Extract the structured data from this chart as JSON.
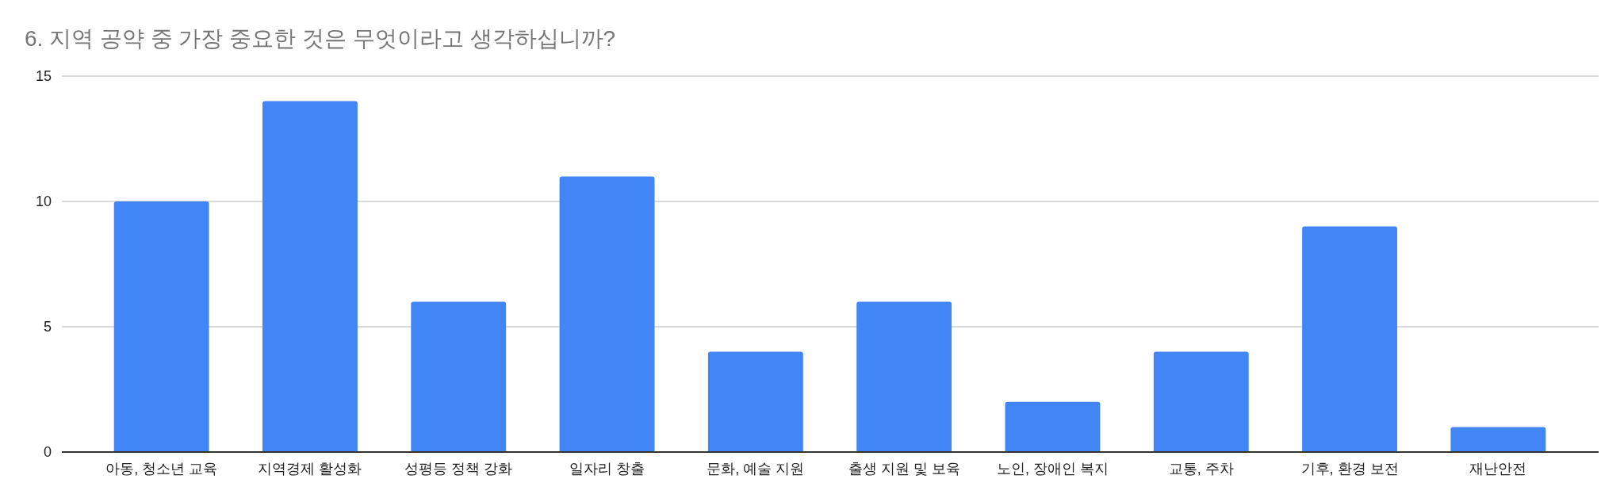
{
  "chart_data": {
    "type": "bar",
    "title": "6. 지역 공약 중 가장 중요한 것은 무엇이라고 생각하십니까?",
    "categories": [
      "아동, 청소년 교육",
      "지역경제 활성화",
      "성평등 정책 강화",
      "일자리 창출",
      "문화, 예술 지원",
      "출생 지원 및 보육",
      "노인, 장애인 복지",
      "교통, 주차",
      "기후, 환경 보전",
      "재난안전"
    ],
    "values": [
      10,
      14,
      6,
      11,
      4,
      6,
      2,
      4,
      9,
      1
    ],
    "color": "#4285f4",
    "ylim": [
      0,
      15
    ],
    "yticks": [
      0,
      5,
      10,
      15
    ],
    "grid": "y"
  }
}
